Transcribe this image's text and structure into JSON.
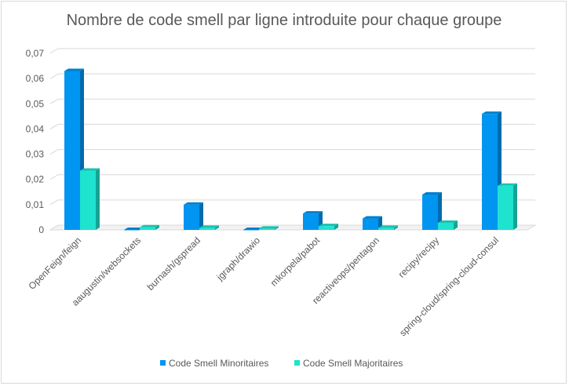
{
  "chart_data": {
    "type": "bar",
    "title": "Nombre de code smell par ligne introduite pour chaque groupe",
    "xlabel": "",
    "ylabel": "",
    "categories": [
      "OpenFeign/feign",
      "aaugustin/websockets",
      "burnash/gspread",
      "jgraph/drawio",
      "mkorpela/pabot",
      "reactiveops/pentagon",
      "recipy/recipy",
      "spring-cloud/spring-cloud-consul"
    ],
    "series": [
      {
        "name": "Code Smell Minoritaires",
        "color": "#0095f0",
        "values": [
          0.063,
          0.0,
          0.01,
          0.0,
          0.0065,
          0.0045,
          0.014,
          0.046
        ]
      },
      {
        "name": "Code Smell Majoritaires",
        "color": "#1ee3cf",
        "values": [
          0.0235,
          0.001,
          0.0008,
          0.0005,
          0.0015,
          0.0008,
          0.0028,
          0.0175
        ]
      }
    ],
    "ylim": [
      0,
      0.07
    ],
    "yticks": [
      "0",
      "0,01",
      "0,02",
      "0,03",
      "0,04",
      "0,05",
      "0,06",
      "0,07"
    ],
    "grid": true,
    "legend_position": "bottom"
  }
}
